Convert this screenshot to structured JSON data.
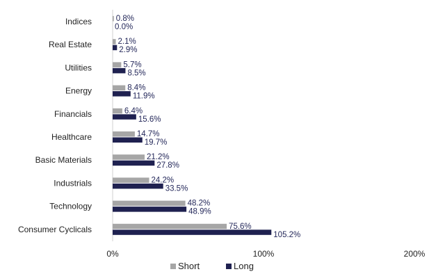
{
  "chart_data": {
    "type": "bar",
    "orientation": "horizontal",
    "categories": [
      "Indices",
      "Real Estate",
      "Utilities",
      "Energy",
      "Financials",
      "Healthcare",
      "Basic Materials",
      "Industrials",
      "Technology",
      "Consumer Cyclicals"
    ],
    "series": [
      {
        "name": "Short",
        "color": "#a6a6a6",
        "values": [
          0.8,
          2.1,
          5.7,
          8.4,
          6.4,
          14.7,
          21.2,
          24.2,
          48.2,
          75.6
        ],
        "labels": [
          "0.8%",
          "2.1%",
          "5.7%",
          "8.4%",
          "6.4%",
          "14.7%",
          "21.2%",
          "24.2%",
          "48.2%",
          "75.6%"
        ]
      },
      {
        "name": "Long",
        "color": "#1f2150",
        "values": [
          0.0,
          2.9,
          8.5,
          11.9,
          15.6,
          19.7,
          27.8,
          33.5,
          48.9,
          105.2
        ],
        "labels": [
          "0.0%",
          "2.9%",
          "8.5%",
          "11.9%",
          "15.6%",
          "19.7%",
          "27.8%",
          "33.5%",
          "48.9%",
          "105.2%"
        ]
      }
    ],
    "xlim": [
      0,
      200
    ],
    "xticks": [
      0,
      100,
      200
    ],
    "xtick_labels": [
      "0%",
      "100%",
      "200%"
    ],
    "title": "",
    "xlabel": "",
    "ylabel": "",
    "legend_position": "bottom-center",
    "grid": false
  }
}
